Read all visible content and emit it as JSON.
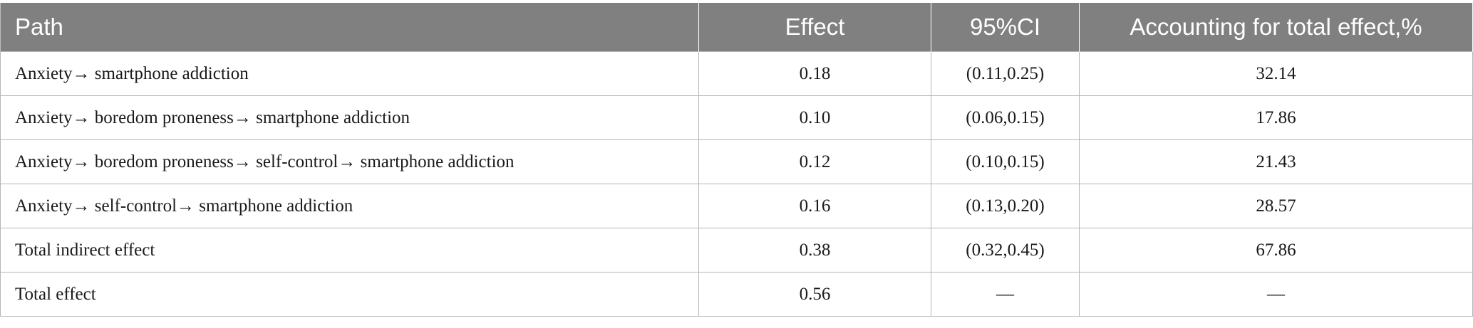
{
  "table": {
    "headers": [
      "Path",
      "Effect",
      "95%CI",
      "Accounting for total effect,%"
    ],
    "rows": [
      {
        "path": "Anxiety→ smartphone addiction",
        "effect": "0.18",
        "ci": "(0.11,0.25)",
        "accounting": "32.14"
      },
      {
        "path": "Anxiety→ boredom proneness→ smartphone addiction",
        "effect": "0.10",
        "ci": "(0.06,0.15)",
        "accounting": "17.86"
      },
      {
        "path": "Anxiety→ boredom proneness→ self-control→ smartphone addiction",
        "effect": "0.12",
        "ci": "(0.10,0.15)",
        "accounting": "21.43"
      },
      {
        "path": "Anxiety→ self-control→ smartphone addiction",
        "effect": "0.16",
        "ci": "(0.13,0.20)",
        "accounting": "28.57"
      },
      {
        "path": "Total indirect effect",
        "effect": "0.38",
        "ci": "(0.32,0.45)",
        "accounting": "67.86"
      },
      {
        "path": "Total effect",
        "effect": "0.56",
        "ci": "—",
        "accounting": "—"
      }
    ]
  },
  "colors": {
    "header_bg": "#808080",
    "header_text": "#ffffff",
    "grid_line": "#b5b5b5"
  }
}
